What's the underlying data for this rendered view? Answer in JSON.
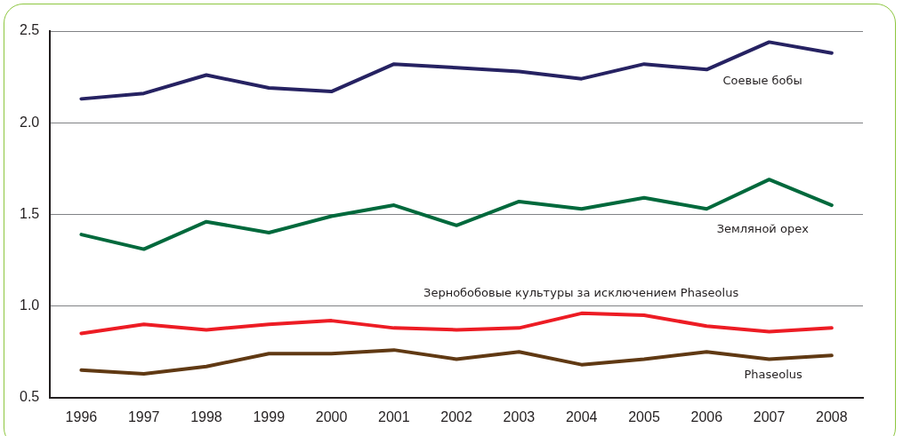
{
  "chart_data": {
    "type": "line",
    "categories": [
      "1996",
      "1997",
      "1998",
      "1999",
      "2000",
      "2001",
      "2002",
      "2003",
      "2004",
      "2005",
      "2006",
      "2007",
      "2008"
    ],
    "series": [
      {
        "name": "Соевые бобы",
        "color": "#262262",
        "values": [
          2.13,
          2.16,
          2.26,
          2.19,
          2.17,
          2.32,
          2.3,
          2.28,
          2.24,
          2.32,
          2.29,
          2.44,
          2.38
        ]
      },
      {
        "name": "Земляной орех",
        "color": "#00693c",
        "values": [
          1.39,
          1.31,
          1.46,
          1.4,
          1.49,
          1.55,
          1.44,
          1.57,
          1.53,
          1.59,
          1.53,
          1.69,
          1.55
        ]
      },
      {
        "name": "Зернобобовые культуры за исключением Phaseolus",
        "color": "#ed1c24",
        "values": [
          0.85,
          0.9,
          0.87,
          0.9,
          0.92,
          0.88,
          0.87,
          0.88,
          0.96,
          0.95,
          0.89,
          0.86,
          0.88
        ]
      },
      {
        "name": "Phaseolus",
        "color": "#603913",
        "values": [
          0.65,
          0.63,
          0.67,
          0.74,
          0.74,
          0.76,
          0.71,
          0.75,
          0.68,
          0.71,
          0.75,
          0.71,
          0.73
        ]
      }
    ],
    "ylim": [
      0.5,
      2.5
    ],
    "yticks": [
      {
        "value": 0.5,
        "label": "0.5"
      },
      {
        "value": 1,
        "label": "1.0"
      },
      {
        "value": 1.5,
        "label": "1.5"
      },
      {
        "value": 2,
        "label": "2.0"
      },
      {
        "value": 2.5,
        "label": "2.5"
      }
    ],
    "grid": "y",
    "legend": false,
    "marker": "none",
    "line_style": "solid"
  }
}
